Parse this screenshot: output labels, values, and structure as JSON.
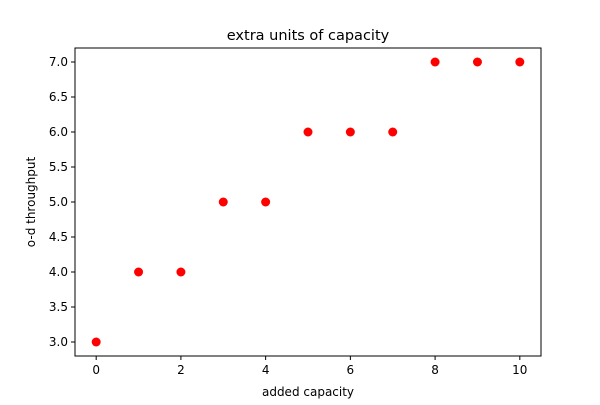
{
  "chart_data": {
    "type": "scatter",
    "title": "extra units of capacity",
    "xlabel": "added capacity",
    "ylabel": "o-d throughput",
    "x": [
      0,
      1,
      2,
      3,
      4,
      5,
      6,
      7,
      8,
      9,
      10
    ],
    "y": [
      3.0,
      4.0,
      4.0,
      5.0,
      5.0,
      6.0,
      6.0,
      6.0,
      7.0,
      7.0,
      7.0
    ],
    "xlim": [
      -0.5,
      10.5
    ],
    "ylim": [
      2.8,
      7.2
    ],
    "xticks": [
      "0",
      "2",
      "4",
      "6",
      "8",
      "10"
    ],
    "yticks": [
      "3.0",
      "3.5",
      "4.0",
      "4.5",
      "5.0",
      "5.5",
      "6.0",
      "6.5",
      "7.0"
    ],
    "marker_color": "#ff0000",
    "grid": false
  }
}
